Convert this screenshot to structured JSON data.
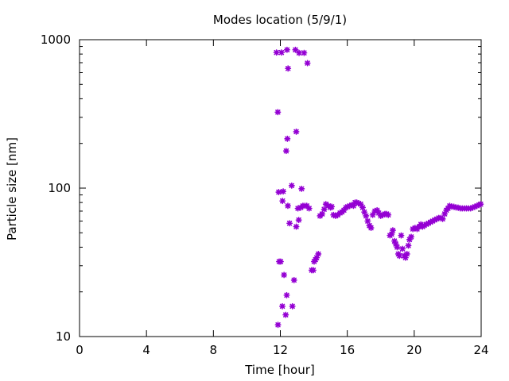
{
  "chart_data": {
    "type": "scatter",
    "title": "Modes location (5/9/1)",
    "xlabel": "Time [hour]",
    "ylabel": "Particle size [nm]",
    "xlim": [
      0,
      24
    ],
    "ylim": [
      10,
      1000
    ],
    "yscale": "log",
    "x_ticks": [
      "0",
      "4",
      "8",
      "12",
      "16",
      "20",
      "24"
    ],
    "y_ticks": [
      "10",
      "100",
      "1000"
    ],
    "grid": false,
    "marker_color": "#9400d3",
    "points": [
      {
        "x": 11.77,
        "y": 820
      },
      {
        "x": 11.85,
        "y": 325
      },
      {
        "x": 11.9,
        "y": 94
      },
      {
        "x": 11.93,
        "y": 32
      },
      {
        "x": 12.02,
        "y": 32
      },
      {
        "x": 11.86,
        "y": 12
      },
      {
        "x": 12.07,
        "y": 820
      },
      {
        "x": 12.13,
        "y": 82
      },
      {
        "x": 12.17,
        "y": 95
      },
      {
        "x": 12.12,
        "y": 16
      },
      {
        "x": 12.22,
        "y": 26
      },
      {
        "x": 12.32,
        "y": 14
      },
      {
        "x": 12.4,
        "y": 855
      },
      {
        "x": 12.46,
        "y": 640
      },
      {
        "x": 12.35,
        "y": 178
      },
      {
        "x": 12.42,
        "y": 215
      },
      {
        "x": 12.38,
        "y": 19
      },
      {
        "x": 12.45,
        "y": 76
      },
      {
        "x": 12.55,
        "y": 58
      },
      {
        "x": 12.68,
        "y": 104
      },
      {
        "x": 12.72,
        "y": 16
      },
      {
        "x": 12.82,
        "y": 24
      },
      {
        "x": 12.9,
        "y": 855
      },
      {
        "x": 12.95,
        "y": 240
      },
      {
        "x": 12.95,
        "y": 55
      },
      {
        "x": 13.05,
        "y": 73
      },
      {
        "x": 13.1,
        "y": 61
      },
      {
        "x": 13.12,
        "y": 815
      },
      {
        "x": 13.22,
        "y": 74
      },
      {
        "x": 13.27,
        "y": 99
      },
      {
        "x": 13.35,
        "y": 76
      },
      {
        "x": 13.42,
        "y": 815
      },
      {
        "x": 13.47,
        "y": 76
      },
      {
        "x": 13.62,
        "y": 695
      },
      {
        "x": 13.58,
        "y": 76
      },
      {
        "x": 13.72,
        "y": 73
      },
      {
        "x": 13.87,
        "y": 28
      },
      {
        "x": 13.97,
        "y": 28
      },
      {
        "x": 14.02,
        "y": 32
      },
      {
        "x": 14.1,
        "y": 33
      },
      {
        "x": 14.17,
        "y": 34
      },
      {
        "x": 14.27,
        "y": 36
      },
      {
        "x": 14.37,
        "y": 65
      },
      {
        "x": 14.5,
        "y": 67
      },
      {
        "x": 14.62,
        "y": 72
      },
      {
        "x": 14.72,
        "y": 78
      },
      {
        "x": 14.87,
        "y": 76
      },
      {
        "x": 15.0,
        "y": 74
      },
      {
        "x": 15.07,
        "y": 75
      },
      {
        "x": 15.17,
        "y": 66
      },
      {
        "x": 15.3,
        "y": 65
      },
      {
        "x": 15.43,
        "y": 66
      },
      {
        "x": 15.57,
        "y": 68
      },
      {
        "x": 15.68,
        "y": 69
      },
      {
        "x": 15.8,
        "y": 71
      },
      {
        "x": 15.92,
        "y": 74
      },
      {
        "x": 16.02,
        "y": 75
      },
      {
        "x": 16.15,
        "y": 76
      },
      {
        "x": 16.27,
        "y": 77
      },
      {
        "x": 16.37,
        "y": 76
      },
      {
        "x": 16.47,
        "y": 80
      },
      {
        "x": 16.57,
        "y": 80
      },
      {
        "x": 16.67,
        "y": 79
      },
      {
        "x": 16.8,
        "y": 78
      },
      {
        "x": 16.92,
        "y": 74
      },
      {
        "x": 17.02,
        "y": 69
      },
      {
        "x": 17.12,
        "y": 65
      },
      {
        "x": 17.22,
        "y": 60
      },
      {
        "x": 17.32,
        "y": 56
      },
      {
        "x": 17.42,
        "y": 54
      },
      {
        "x": 17.52,
        "y": 66
      },
      {
        "x": 17.65,
        "y": 70
      },
      {
        "x": 17.78,
        "y": 71
      },
      {
        "x": 17.88,
        "y": 68
      },
      {
        "x": 18.0,
        "y": 65
      },
      {
        "x": 18.12,
        "y": 66
      },
      {
        "x": 18.25,
        "y": 67
      },
      {
        "x": 18.35,
        "y": 67
      },
      {
        "x": 18.45,
        "y": 66
      },
      {
        "x": 18.55,
        "y": 48
      },
      {
        "x": 18.65,
        "y": 49
      },
      {
        "x": 18.72,
        "y": 52
      },
      {
        "x": 18.82,
        "y": 44
      },
      {
        "x": 18.9,
        "y": 42
      },
      {
        "x": 18.98,
        "y": 40
      },
      {
        "x": 19.05,
        "y": 36
      },
      {
        "x": 19.12,
        "y": 35
      },
      {
        "x": 19.22,
        "y": 48
      },
      {
        "x": 19.3,
        "y": 39
      },
      {
        "x": 19.4,
        "y": 35
      },
      {
        "x": 19.48,
        "y": 34
      },
      {
        "x": 19.57,
        "y": 36
      },
      {
        "x": 19.65,
        "y": 41
      },
      {
        "x": 19.72,
        "y": 45
      },
      {
        "x": 19.82,
        "y": 47
      },
      {
        "x": 19.92,
        "y": 53
      },
      {
        "x": 20.05,
        "y": 54
      },
      {
        "x": 20.17,
        "y": 53
      },
      {
        "x": 20.3,
        "y": 55
      },
      {
        "x": 20.4,
        "y": 57
      },
      {
        "x": 20.5,
        "y": 55
      },
      {
        "x": 20.6,
        "y": 56
      },
      {
        "x": 20.72,
        "y": 57
      },
      {
        "x": 20.85,
        "y": 58
      },
      {
        "x": 20.97,
        "y": 59
      },
      {
        "x": 21.1,
        "y": 60
      },
      {
        "x": 21.22,
        "y": 61
      },
      {
        "x": 21.35,
        "y": 62
      },
      {
        "x": 21.47,
        "y": 63
      },
      {
        "x": 21.6,
        "y": 63
      },
      {
        "x": 21.7,
        "y": 62
      },
      {
        "x": 21.82,
        "y": 67
      },
      {
        "x": 21.92,
        "y": 71
      },
      {
        "x": 22.02,
        "y": 73
      },
      {
        "x": 22.12,
        "y": 76
      },
      {
        "x": 22.25,
        "y": 75
      },
      {
        "x": 22.37,
        "y": 75
      },
      {
        "x": 22.5,
        "y": 74
      },
      {
        "x": 22.62,
        "y": 74
      },
      {
        "x": 22.75,
        "y": 73
      },
      {
        "x": 22.87,
        "y": 73
      },
      {
        "x": 23.0,
        "y": 73
      },
      {
        "x": 23.12,
        "y": 73
      },
      {
        "x": 23.25,
        "y": 73
      },
      {
        "x": 23.37,
        "y": 73
      },
      {
        "x": 23.5,
        "y": 74
      },
      {
        "x": 23.62,
        "y": 75
      },
      {
        "x": 23.75,
        "y": 76
      },
      {
        "x": 23.87,
        "y": 77
      },
      {
        "x": 23.97,
        "y": 78
      }
    ]
  }
}
